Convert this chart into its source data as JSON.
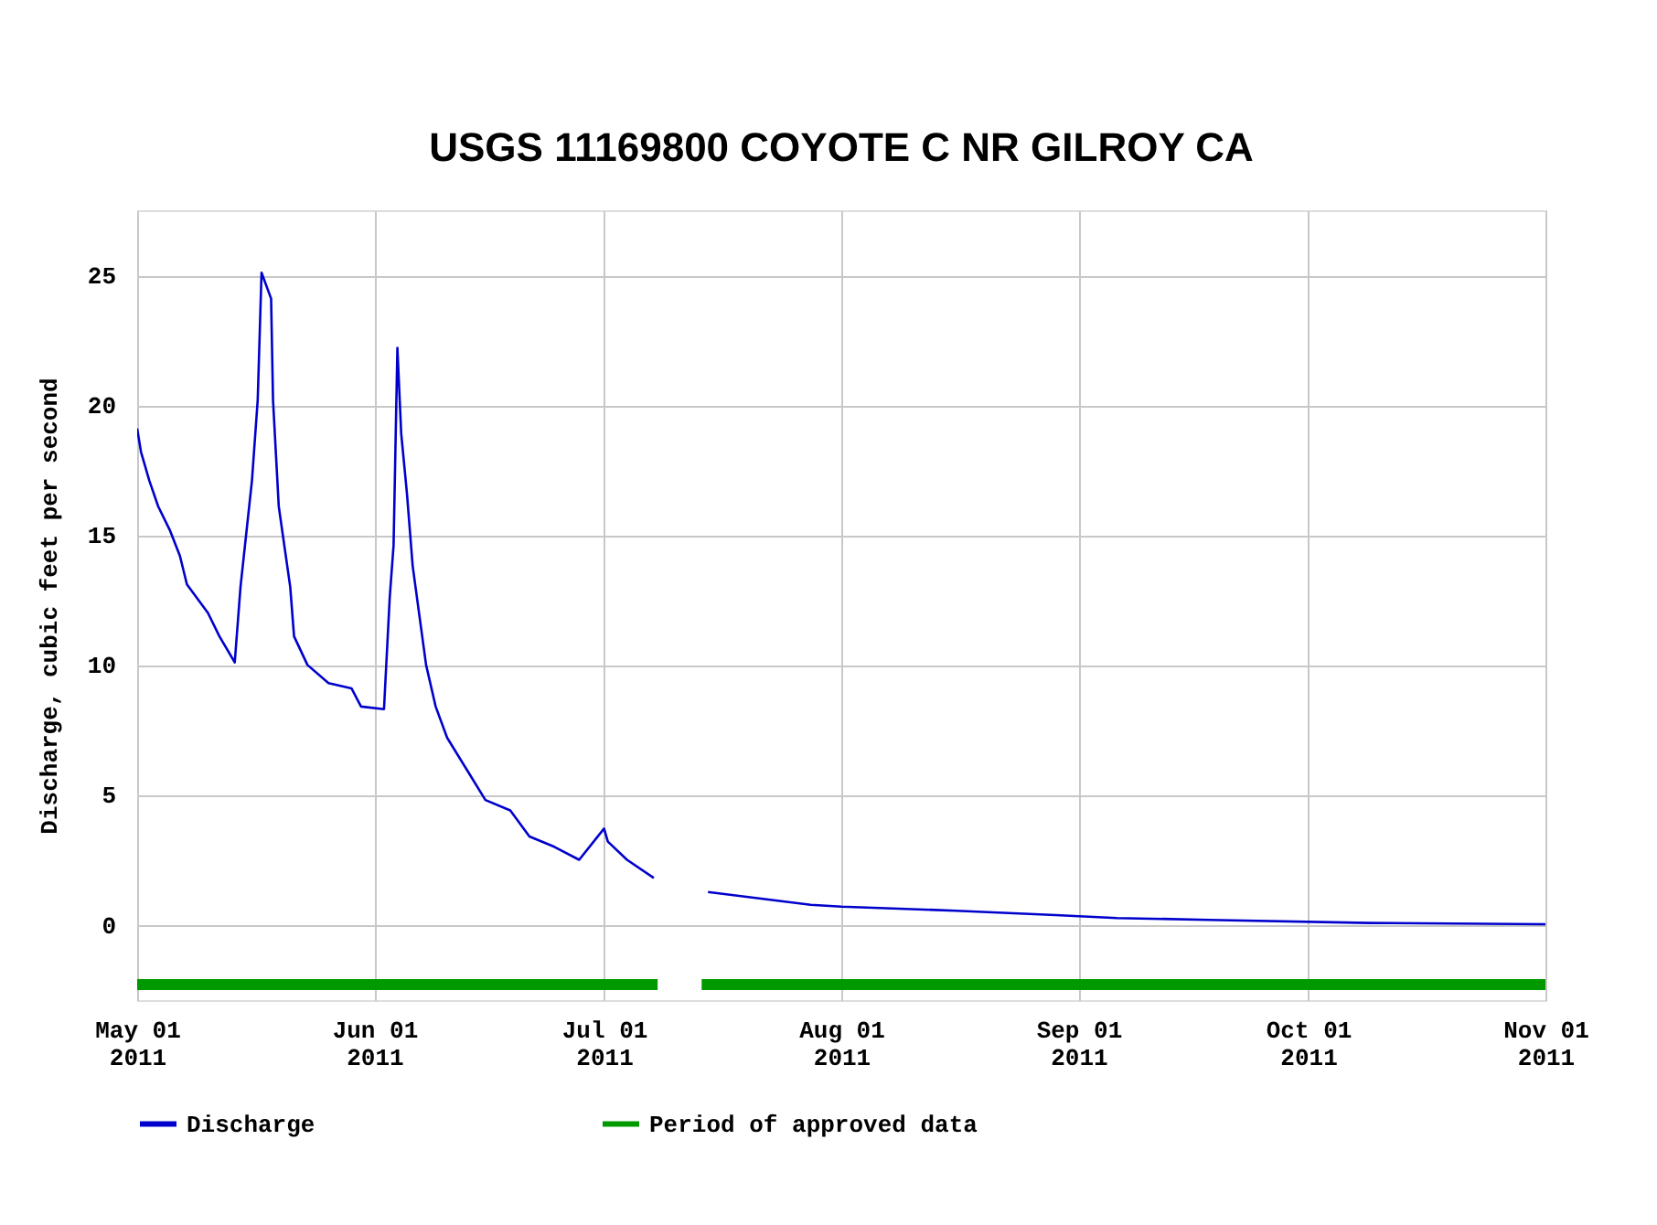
{
  "chart_data": {
    "type": "line",
    "title": "USGS 11169800 COYOTE C NR GILROY CA",
    "ylabel": "Discharge, cubic feet per second",
    "series": [
      {
        "name": "Discharge",
        "color": "#0000cc",
        "x": [
          "2011-05-01T00:00",
          "2011-05-01T12:00",
          "2011-05-02T14:00",
          "2011-05-03T18:00",
          "2011-05-05T06:00",
          "2011-05-06T14:00",
          "2011-05-07T12:00",
          "2011-05-10T06:00",
          "2011-05-11T18:00",
          "2011-05-13T18:00",
          "2011-05-14T12:00",
          "2011-05-16T00:00",
          "2011-05-16T18:00",
          "2011-05-17T06:00",
          "2011-05-18T12:00",
          "2011-05-18T18:00",
          "2011-05-19T12:00",
          "2011-05-21T00:00",
          "2011-05-21T12:00",
          "2011-05-23T06:00",
          "2011-05-26T00:00",
          "2011-05-29T00:00",
          "2011-05-30T06:00",
          "2011-06-02T06:00",
          "2011-06-03T00:00",
          "2011-06-03T12:00",
          "2011-06-04T00:00",
          "2011-06-04T12:00",
          "2011-06-05T06:00",
          "2011-06-06T00:00",
          "2011-06-07T18:00",
          "2011-06-09T00:00",
          "2011-06-10T12:00",
          "2011-06-13T00:00",
          "2011-06-15T12:00",
          "2011-06-18T18:00",
          "2011-06-21T06:00",
          "2011-06-24T12:00",
          "2011-06-27T18:00",
          "2011-07-01T00:00",
          "2011-07-01T12:00",
          "2011-07-04T00:00",
          "2011-07-07T12:00",
          "2011-07-10T00:00",
          "2011-07-14T14:00",
          "2011-07-28T00:00",
          "2011-08-01T00:00",
          "2011-08-16T00:00",
          "2011-08-29T00:00",
          "2011-09-06T00:00",
          "2011-09-18T00:00",
          "2011-10-09T00:00",
          "2011-11-01T00:00"
        ],
        "values": [
          19.1,
          18.2,
          17.1,
          16.1,
          15.2,
          14.2,
          13.1,
          12.0,
          11.1,
          10.1,
          13.0,
          17.1,
          20.2,
          25.1,
          24.1,
          20.2,
          16.1,
          13.0,
          11.1,
          10.0,
          9.3,
          9.1,
          8.4,
          8.3,
          12.6,
          14.6,
          22.2,
          18.9,
          16.6,
          13.8,
          10.0,
          8.4,
          7.2,
          6.0,
          4.8,
          4.4,
          3.4,
          3.0,
          2.5,
          3.7,
          3.2,
          2.5,
          1.8,
          null,
          1.26,
          0.77,
          0.7,
          0.54,
          0.37,
          0.26,
          0.19,
          0.07,
          0.02
        ]
      },
      {
        "name": "Period of approved data",
        "color": "#009900",
        "x": [
          "2011-05-01T00:00",
          "2011-07-08T00:00",
          "2011-07-10T00:00",
          "2011-07-13T18:00",
          "2011-11-01T00:00"
        ],
        "values": [
          -2.3,
          -2.3,
          null,
          -2.3,
          -2.3
        ]
      }
    ],
    "xlim": [
      "2011-05-01T00:00",
      "2011-11-01T00:00"
    ],
    "xticks": [
      {
        "value": "2011-05-01T00:00",
        "label": "May 01\n2011"
      },
      {
        "value": "2011-06-01T00:00",
        "label": "Jun 01\n2011"
      },
      {
        "value": "2011-07-01T00:00",
        "label": "Jul 01\n2011"
      },
      {
        "value": "2011-08-01T00:00",
        "label": "Aug 01\n2011"
      },
      {
        "value": "2011-09-01T00:00",
        "label": "Sep 01\n2011"
      },
      {
        "value": "2011-10-01T00:00",
        "label": "Oct 01\n2011"
      },
      {
        "value": "2011-11-01T00:00",
        "label": "Nov 01\n2011"
      }
    ],
    "ylim": [
      -2.9,
      27.5
    ],
    "yticks": [
      0,
      5,
      10,
      15,
      20,
      25
    ],
    "grid": true,
    "legend": "bottom",
    "marker": "none",
    "line_style": "solid"
  }
}
